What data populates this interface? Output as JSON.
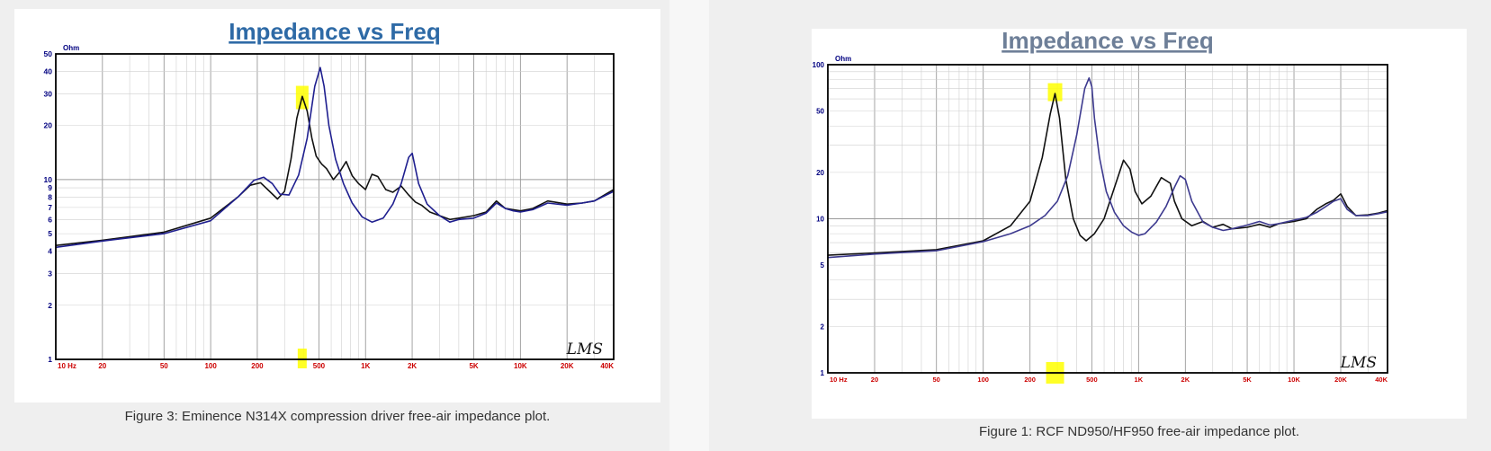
{
  "chart_data": [
    {
      "type": "line",
      "title": "Impedance vs Freq",
      "title_color": "#2e6aa6",
      "y_unit": "Ohm",
      "xscale": "log",
      "yscale": "log",
      "xlim": [
        10,
        40000
      ],
      "ylim": [
        1,
        50
      ],
      "x_ticks": [
        "10  Hz",
        "20",
        "50",
        "100",
        "200",
        "500",
        "1K",
        "2K",
        "5K",
        "10K",
        "20K",
        "40K"
      ],
      "y_ticks": [
        "50",
        "40",
        "30",
        "20",
        "10",
        "9",
        "8",
        "7",
        "6",
        "5",
        "4",
        "3",
        "2",
        "1"
      ],
      "logo": "LMS",
      "highlight_x": 390,
      "series": [
        {
          "color": "#111111",
          "x": [
            10,
            20,
            50,
            100,
            150,
            180,
            210,
            240,
            270,
            300,
            330,
            360,
            390,
            420,
            450,
            480,
            520,
            560,
            620,
            680,
            750,
            820,
            900,
            1000,
            1100,
            1200,
            1350,
            1500,
            1700,
            1900,
            2100,
            2300,
            2600,
            3000,
            3500,
            4000,
            5000,
            6000,
            7000,
            8000,
            9000,
            10000,
            12000,
            15000,
            20000,
            25000,
            30000,
            40000
          ],
          "y": [
            4.3,
            4.6,
            5.1,
            6.1,
            8.0,
            9.3,
            9.6,
            8.6,
            7.8,
            8.6,
            13,
            22,
            29,
            24,
            17,
            13.5,
            12.2,
            11.5,
            10,
            11,
            12.6,
            10.5,
            9.5,
            8.8,
            10.7,
            10.4,
            8.8,
            8.5,
            9.2,
            8.2,
            7.5,
            7.2,
            6.6,
            6.3,
            6.0,
            6.1,
            6.3,
            6.6,
            7.6,
            6.9,
            6.8,
            6.7,
            6.9,
            7.6,
            7.3,
            7.4,
            7.6,
            8.8
          ]
        },
        {
          "color": "#1f1f8f",
          "x": [
            10,
            20,
            50,
            100,
            150,
            190,
            220,
            250,
            280,
            320,
            370,
            420,
            470,
            510,
            540,
            580,
            640,
            720,
            820,
            950,
            1100,
            1300,
            1500,
            1700,
            1900,
            2000,
            2200,
            2500,
            3000,
            3500,
            4000,
            5000,
            6000,
            7000,
            8000,
            9000,
            10000,
            12000,
            15000,
            20000,
            25000,
            30000,
            40000
          ],
          "y": [
            4.2,
            4.55,
            5.0,
            5.9,
            8.0,
            9.9,
            10.3,
            9.5,
            8.3,
            8.2,
            10.6,
            17,
            33,
            42,
            33,
            20,
            13,
            9.5,
            7.4,
            6.2,
            5.8,
            6.1,
            7.3,
            9.5,
            13.3,
            14.0,
            9.5,
            7.3,
            6.3,
            5.8,
            6.0,
            6.1,
            6.5,
            7.4,
            6.9,
            6.7,
            6.6,
            6.8,
            7.4,
            7.2,
            7.4,
            7.6,
            8.6
          ]
        }
      ]
    },
    {
      "type": "line",
      "title": "Impedance vs Freq",
      "title_color": "#6e7f98",
      "y_unit": "Ohm",
      "xscale": "log",
      "yscale": "log",
      "xlim": [
        10,
        40000
      ],
      "ylim": [
        1,
        100
      ],
      "x_ticks": [
        "10  Hz",
        "20",
        "50",
        "100",
        "200",
        "500",
        "1K",
        "2K",
        "5K",
        "10K",
        "20K",
        "40K"
      ],
      "y_ticks": [
        "100",
        "50",
        "20",
        "10",
        "5",
        "2",
        "1"
      ],
      "logo": "LMS",
      "highlight_x": 290,
      "series": [
        {
          "color": "#111111",
          "x": [
            10,
            20,
            50,
            100,
            150,
            200,
            240,
            270,
            290,
            310,
            340,
            380,
            420,
            460,
            520,
            600,
            700,
            800,
            880,
            950,
            1050,
            1200,
            1400,
            1600,
            1700,
            1900,
            2200,
            2600,
            3000,
            3500,
            4000,
            5000,
            6000,
            7000,
            8000,
            10000,
            12000,
            14000,
            16000,
            18000,
            20000,
            22000,
            25000,
            30000,
            35000,
            40000
          ],
          "y": [
            5.8,
            6.0,
            6.3,
            7.2,
            9.0,
            13,
            25,
            48,
            65,
            45,
            18,
            10,
            7.8,
            7.2,
            8.0,
            10,
            16,
            24,
            21,
            15,
            12.5,
            14,
            18.5,
            17,
            13,
            10,
            9.0,
            9.6,
            8.8,
            9.2,
            8.6,
            8.8,
            9.2,
            8.8,
            9.3,
            9.6,
            10,
            11.5,
            12.5,
            13.2,
            14.5,
            12,
            10.5,
            10.6,
            10.9,
            11.3
          ]
        },
        {
          "color": "#3d3a8f",
          "x": [
            10,
            20,
            50,
            100,
            150,
            200,
            250,
            300,
            350,
            400,
            450,
            480,
            500,
            520,
            560,
            620,
            700,
            800,
            900,
            1000,
            1100,
            1300,
            1500,
            1700,
            1850,
            2000,
            2200,
            2600,
            3000,
            3500,
            4000,
            5000,
            6000,
            7000,
            8000,
            10000,
            12000,
            14000,
            16000,
            18000,
            20000,
            22000,
            25000,
            30000,
            35000,
            40000
          ],
          "y": [
            5.6,
            5.9,
            6.2,
            7.1,
            8.0,
            9.0,
            10.5,
            13,
            19,
            35,
            70,
            82,
            72,
            45,
            25,
            15,
            11,
            9.0,
            8.2,
            7.8,
            8.0,
            9.5,
            12,
            16,
            19,
            18,
            13,
            9.5,
            8.8,
            8.4,
            8.6,
            9.1,
            9.6,
            9.1,
            9.3,
            9.8,
            10.2,
            11,
            12,
            13,
            13.5,
            11.5,
            10.5,
            10.5,
            10.8,
            11.1
          ]
        }
      ]
    }
  ],
  "captions": [
    "Figure 3: Eminence N314X compression driver free-air impedance plot.",
    "Figure 1: RCF ND950/HF950 free-air impedance plot."
  ]
}
